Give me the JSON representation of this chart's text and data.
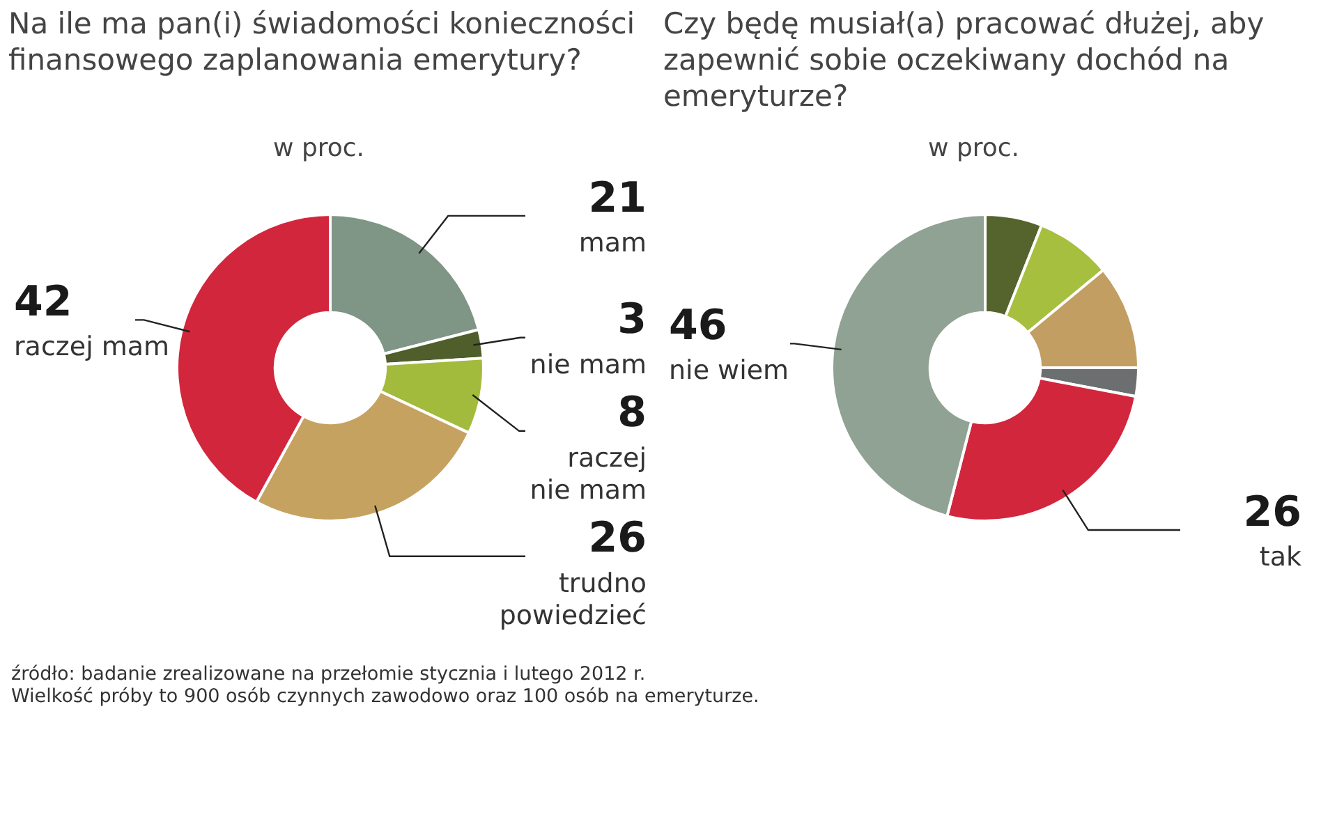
{
  "chart_data": [
    {
      "type": "donut",
      "title": "Na ile ma pan(i) świadomości konieczności finansowego zaplanowania emerytury?",
      "subtitle": "w proc.",
      "categories": [
        "mam",
        "nie mam",
        "raczej nie mam",
        "trudno powiedzieć",
        "raczej mam"
      ],
      "values": [
        21,
        3,
        8,
        26,
        42
      ],
      "colors": [
        "#7f9585",
        "#4f5e2a",
        "#a3bb3c",
        "#c6a261",
        "#d2263d"
      ],
      "data_labels": true,
      "legend": false,
      "annotations": [
        "źródło: badanie zrealizowane na przełomie stycznia i lutego 2012 r.",
        "Wielkość próby to 900 osób czynnych zawodowo oraz 100 osób na emeryturze."
      ]
    },
    {
      "type": "donut",
      "title": "Czy będę musiał(a) pracować dłużej, aby zapewnić sobie oczekiwany dochód na emeryturze?",
      "subtitle": "w proc.",
      "categories": [
        null,
        null,
        null,
        null,
        "tak",
        "nie wiem"
      ],
      "values": [
        6,
        8,
        11,
        3,
        26,
        46
      ],
      "colors": [
        "#55632c",
        "#a6bf3e",
        "#c39e62",
        "#6b6f70",
        "#d2263d",
        "#8fa293"
      ],
      "value_labels": [
        null,
        null,
        null,
        null,
        "26",
        "46"
      ],
      "legend": false
    }
  ]
}
